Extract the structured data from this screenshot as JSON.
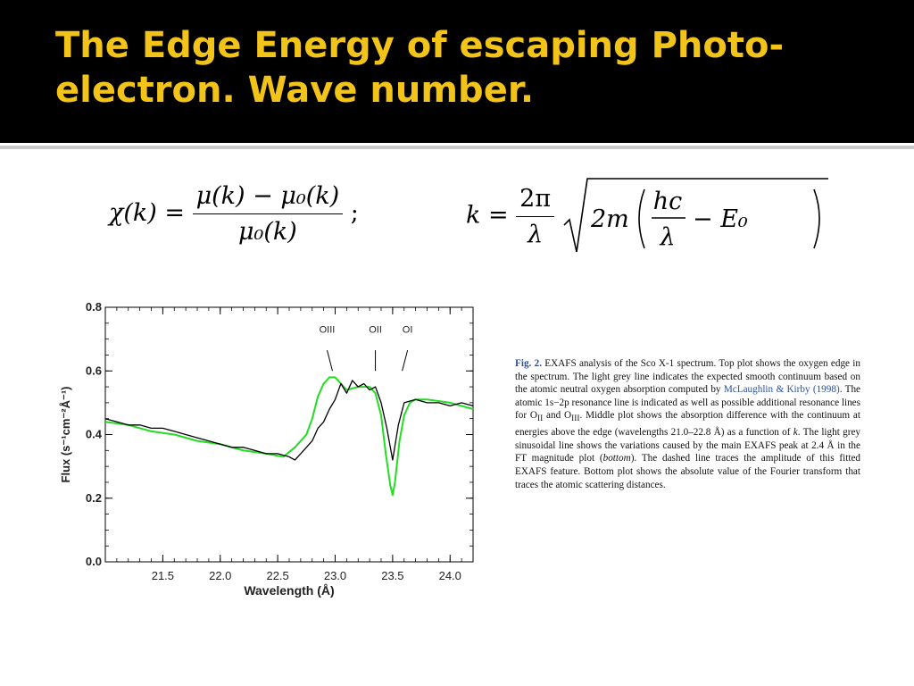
{
  "slide": {
    "title": "The Edge Energy of escaping Photo-electron. Wave number."
  },
  "equations": {
    "chi": {
      "lhs": "χ(k) =",
      "numerator": "μ(k) − μ₀(k)",
      "denominator": "μ₀(k)",
      "terminator": ";"
    },
    "k": {
      "lhs": "k =",
      "coef_num": "2π",
      "coef_den": "λ",
      "inner_prefix": "2m",
      "inner_num": "hc",
      "inner_den": "λ",
      "inner_minus": "− E₀"
    }
  },
  "caption": {
    "fig_label": "Fig. 2.",
    "text_1": " EXAFS analysis of the Sco X-1 spectrum. Top plot shows the oxygen edge in the spectrum. The light grey line indicates the expected smooth continuum based on the atomic neutral oxygen absorption computed by ",
    "ref": "McLaughlin & Kirby (1998)",
    "text_2": ". The atomic 1s−2p resonance line is indicated as well as possible additional resonance lines for O",
    "sub_ii": "II",
    "text_3": " and O",
    "sub_iii": "III",
    "text_4": ". Middle plot shows the absorption difference with the continuum at energies above the edge (wavelengths 21.0–22.8 Å) as a function of ",
    "k_italic": "k",
    "text_5": ". The light grey sinusoidal line shows the variations caused by the main EXAFS peak at 2.4 Å in the FT magnitude plot (",
    "bottom_italic": "bottom",
    "text_6": "). The dashed line traces the amplitude of this fitted EXAFS feature. Bottom plot shows the absolute value of the Fourier transform that traces the atomic scattering distances."
  },
  "chart_data": {
    "type": "line",
    "title": "",
    "xlabel": "Wavelength (Å)",
    "ylabel": "Flux (s⁻¹cm⁻²Å⁻¹)",
    "xlim": [
      21.0,
      24.2
    ],
    "ylim": [
      0.0,
      0.8
    ],
    "xticks": [
      21.5,
      22.0,
      22.5,
      23.0,
      23.5,
      24.0
    ],
    "xtick_labels": [
      "21.5",
      "22.0",
      "22.5",
      "23.0",
      "23.5",
      "24.0"
    ],
    "yticks": [
      0.0,
      0.2,
      0.4,
      0.6,
      0.8
    ],
    "ytick_labels": [
      "0.0",
      "0.2",
      "0.4",
      "0.6",
      "0.8"
    ],
    "grid": false,
    "colors": {
      "observed": "#000000",
      "model": "#22dd22"
    },
    "series": [
      {
        "name": "",
        "color": "#000000",
        "x": [
          21.0,
          21.1,
          21.2,
          21.3,
          21.4,
          21.5,
          21.6,
          21.7,
          21.8,
          21.9,
          22.0,
          22.1,
          22.2,
          22.3,
          22.4,
          22.5,
          22.6,
          22.65,
          22.7,
          22.75,
          22.8,
          22.85,
          22.9,
          22.95,
          23.0,
          23.05,
          23.1,
          23.15,
          23.2,
          23.25,
          23.3,
          23.35,
          23.4,
          23.45,
          23.5,
          23.55,
          23.6,
          23.7,
          23.8,
          23.9,
          24.0,
          24.1,
          24.2
        ],
        "y": [
          0.45,
          0.44,
          0.43,
          0.43,
          0.42,
          0.42,
          0.41,
          0.4,
          0.39,
          0.38,
          0.37,
          0.36,
          0.36,
          0.35,
          0.34,
          0.34,
          0.33,
          0.32,
          0.34,
          0.36,
          0.38,
          0.42,
          0.44,
          0.48,
          0.51,
          0.56,
          0.53,
          0.57,
          0.55,
          0.56,
          0.54,
          0.55,
          0.5,
          0.42,
          0.32,
          0.43,
          0.5,
          0.51,
          0.5,
          0.5,
          0.49,
          0.5,
          0.49
        ]
      },
      {
        "name": "",
        "color": "#22dd22",
        "x": [
          21.0,
          21.2,
          21.4,
          21.6,
          21.8,
          22.0,
          22.2,
          22.4,
          22.55,
          22.65,
          22.75,
          22.8,
          22.85,
          22.9,
          22.95,
          23.0,
          23.05,
          23.1,
          23.2,
          23.3,
          23.35,
          23.4,
          23.44,
          23.48,
          23.5,
          23.52,
          23.56,
          23.6,
          23.65,
          23.7,
          23.8,
          24.0,
          24.2
        ],
        "y": [
          0.44,
          0.43,
          0.41,
          0.4,
          0.38,
          0.37,
          0.35,
          0.34,
          0.33,
          0.36,
          0.4,
          0.45,
          0.52,
          0.56,
          0.58,
          0.58,
          0.56,
          0.54,
          0.55,
          0.55,
          0.53,
          0.46,
          0.34,
          0.24,
          0.21,
          0.25,
          0.38,
          0.46,
          0.5,
          0.51,
          0.51,
          0.5,
          0.48
        ]
      }
    ],
    "annotations": [
      {
        "text": "OIII",
        "x": 22.93,
        "y": 0.72,
        "line_from_y": 0.665,
        "line_to_y": 0.6
      },
      {
        "text": "OII",
        "x": 23.35,
        "y": 0.72,
        "line_from_y": 0.665,
        "line_to_y": 0.6
      },
      {
        "text": "OI",
        "x": 23.63,
        "y": 0.72,
        "line_from_y": 0.665,
        "line_to_y": 0.6
      }
    ]
  }
}
